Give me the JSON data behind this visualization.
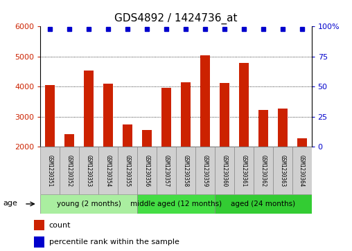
{
  "title": "GDS4892 / 1424736_at",
  "samples": [
    "GSM1230351",
    "GSM1230352",
    "GSM1230353",
    "GSM1230354",
    "GSM1230355",
    "GSM1230356",
    "GSM1230357",
    "GSM1230358",
    "GSM1230359",
    "GSM1230360",
    "GSM1230361",
    "GSM1230362",
    "GSM1230363",
    "GSM1230364"
  ],
  "counts": [
    4050,
    2430,
    4530,
    4100,
    2750,
    2560,
    3960,
    4150,
    5030,
    4130,
    4790,
    3220,
    3270,
    2280
  ],
  "percentiles": [
    98,
    98,
    98,
    98,
    98,
    98,
    98,
    98,
    98,
    98,
    98,
    98,
    98,
    98
  ],
  "ylim_left": [
    2000,
    6000
  ],
  "ylim_right": [
    0,
    100
  ],
  "yticks_left": [
    2000,
    3000,
    4000,
    5000,
    6000
  ],
  "yticks_right": [
    0,
    25,
    50,
    75,
    100
  ],
  "bar_color": "#cc2200",
  "dot_color": "#0000cc",
  "groups": [
    {
      "label": "young (2 months)",
      "start": 0,
      "end": 5,
      "color": "#aaeea0"
    },
    {
      "label": "middle aged (12 months)",
      "start": 5,
      "end": 9,
      "color": "#44dd44"
    },
    {
      "label": "aged (24 months)",
      "start": 9,
      "end": 14,
      "color": "#33cc33"
    }
  ],
  "age_label": "age",
  "legend_count_label": "count",
  "legend_pct_label": "percentile rank within the sample",
  "bar_width": 0.5,
  "background_color": "#ffffff",
  "sample_box_color": "#d0d0d0",
  "title_fontsize": 11,
  "tick_fontsize": 8,
  "sample_fontsize": 5.5,
  "group_fontsize": 7.5
}
